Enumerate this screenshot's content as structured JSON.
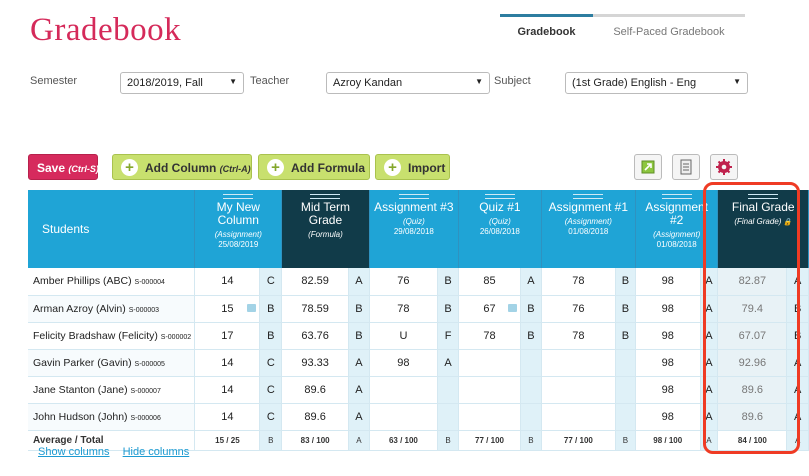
{
  "page": {
    "title": "Gradebook"
  },
  "tabs": [
    {
      "label": "Gradebook",
      "active": true
    },
    {
      "label": "Self-Paced Gradebook",
      "active": false
    }
  ],
  "filters": {
    "semester_label": "Semester",
    "semester_value": "2018/2019, Fall",
    "teacher_label": "Teacher",
    "teacher_value": "Azroy Kandan",
    "subject_label": "Subject",
    "subject_value": "(1st Grade) English - Eng"
  },
  "toolbar": {
    "save_label": "Save",
    "save_hint": "(Ctrl-S)",
    "add_column_label": "Add Column",
    "add_column_hint": "(Ctrl-A)",
    "add_formula_label": "Add Formula",
    "import_label": "Import",
    "icons": [
      "export-icon",
      "document-icon",
      "settings-gear-icon"
    ]
  },
  "table": {
    "students_header": "Students",
    "columns": [
      {
        "name": "My New Column",
        "type": "(Assignment)",
        "date": "25/08/2019",
        "style": "light"
      },
      {
        "name": "Mid Term Grade",
        "type": "(Formula)",
        "date": "",
        "style": "dark"
      },
      {
        "name": "Assignment #3",
        "type": "(Quiz)",
        "date": "29/08/2018",
        "style": "light"
      },
      {
        "name": "Quiz #1",
        "type": "(Quiz)",
        "date": "26/08/2018",
        "style": "light"
      },
      {
        "name": "Assignment #1",
        "type": "(Assignment)",
        "date": "01/08/2018",
        "style": "light"
      },
      {
        "name": "Assignment #2",
        "type": "(Assignment)",
        "date": "01/08/2018",
        "style": "light"
      },
      {
        "name": "Final Grade",
        "type": "(Final Grade)",
        "date": "",
        "style": "final"
      }
    ],
    "rows": [
      {
        "name": "Amber Phillips (ABC)",
        "id": "S-000004",
        "cells": [
          [
            "14",
            "C"
          ],
          [
            "82.59",
            "A"
          ],
          [
            "76",
            "B"
          ],
          [
            "85",
            "A"
          ],
          [
            "78",
            "B"
          ],
          [
            "98",
            "A"
          ],
          [
            "82.87",
            "A"
          ]
        ]
      },
      {
        "name": "Arman Azroy (Alvin)",
        "id": "S-000003",
        "cells": [
          [
            "15",
            "B"
          ],
          [
            "78.59",
            "B"
          ],
          [
            "78",
            "B"
          ],
          [
            "67",
            "B"
          ],
          [
            "76",
            "B"
          ],
          [
            "98",
            "A"
          ],
          [
            "79.4",
            "B"
          ]
        ]
      },
      {
        "name": "Felicity Bradshaw (Felicity)",
        "id": "S-000002",
        "cells": [
          [
            "17",
            "B"
          ],
          [
            "63.76",
            "B"
          ],
          [
            "U",
            "F"
          ],
          [
            "78",
            "B"
          ],
          [
            "78",
            "B"
          ],
          [
            "98",
            "A"
          ],
          [
            "67.07",
            "B"
          ]
        ]
      },
      {
        "name": "Gavin Parker (Gavin)",
        "id": "S-000005",
        "cells": [
          [
            "14",
            "C"
          ],
          [
            "93.33",
            "A"
          ],
          [
            "98",
            "A"
          ],
          [
            "",
            ""
          ],
          [
            "",
            ""
          ],
          [
            "98",
            "A"
          ],
          [
            "92.96",
            "A"
          ]
        ]
      },
      {
        "name": "Jane Stanton (Jane)",
        "id": "S-000007",
        "cells": [
          [
            "14",
            "C"
          ],
          [
            "89.6",
            "A"
          ],
          [
            "",
            ""
          ],
          [
            "",
            ""
          ],
          [
            "",
            ""
          ],
          [
            "98",
            "A"
          ],
          [
            "89.6",
            "A"
          ]
        ]
      },
      {
        "name": "John Hudson (John)",
        "id": "S-000006",
        "cells": [
          [
            "14",
            "C"
          ],
          [
            "89.6",
            "A"
          ],
          [
            "",
            ""
          ],
          [
            "",
            ""
          ],
          [
            "",
            ""
          ],
          [
            "98",
            "A"
          ],
          [
            "89.6",
            "A"
          ]
        ]
      }
    ],
    "average": {
      "label": "Average / Total",
      "cells": [
        [
          "15 / 25",
          "B"
        ],
        [
          "83 / 100",
          "A"
        ],
        [
          "63 / 100",
          "B"
        ],
        [
          "77 / 100",
          "B"
        ],
        [
          "77 / 100",
          "B"
        ],
        [
          "98 / 100",
          "A"
        ],
        [
          "84 / 100",
          "A"
        ]
      ]
    }
  },
  "links": {
    "show": "Show columns",
    "hide": "Hide columns"
  },
  "colors": {
    "accent": "#d52a5a",
    "header_blue": "#1fa4d6",
    "header_dark": "#113b49",
    "highlight": "#ef3b24",
    "green_button": "#c8e06e"
  }
}
